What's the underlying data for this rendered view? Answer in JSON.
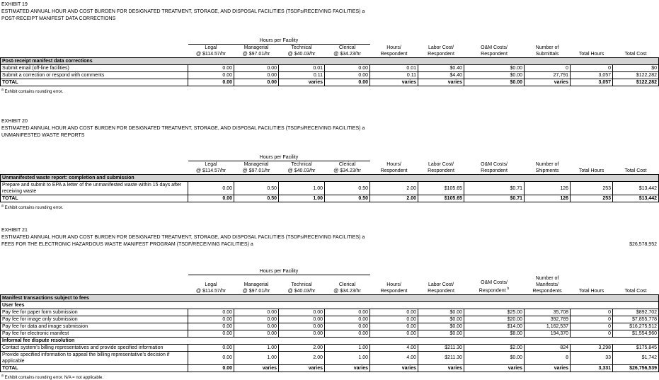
{
  "exhibits": [
    {
      "number": "EXHIBIT 19",
      "title": "ESTIMATED ANNUAL HOUR AND COST BURDEN FOR DESIGNATED TREATMENT, STORAGE, AND DISPOSAL FACILITIES (TSDFs/RECEIVING FACILITIES)",
      "title_note": "a",
      "subtitle": "POST-RECEIPT MANIFEST DATA CORRECTIONS",
      "group_header": "Hours per Facility",
      "columns": [
        {
          "lines": [
            "Legal",
            "@ $114.57/hr"
          ]
        },
        {
          "lines": [
            "Managerial",
            "@ $97.01/hr"
          ]
        },
        {
          "lines": [
            "Technical",
            "@ $40.03/hr"
          ]
        },
        {
          "lines": [
            "Clerical",
            "@ $34.23/hr"
          ]
        },
        {
          "lines": [
            "Hours/",
            "Respondent"
          ]
        },
        {
          "lines": [
            "Labor Cost/",
            "Respondent"
          ]
        },
        {
          "lines": [
            "O&M Costs/",
            "Respondent"
          ]
        },
        {
          "lines": [
            "Number of",
            "Submittals"
          ]
        },
        {
          "lines": [
            "Total Hours"
          ]
        },
        {
          "lines": [
            "Total Cost"
          ]
        }
      ],
      "body": [
        {
          "section": "Post-receipt manifest data corrections"
        },
        {
          "label": "Submit email (off-line facilities)",
          "cells": [
            "0.00",
            "0.00",
            "0.01",
            "0.00",
            "0.01",
            "$0.40",
            "$0.00",
            "0",
            "0",
            "$0"
          ]
        },
        {
          "label": "Submit a correction or respond with comments",
          "cells": [
            "0.00",
            "0.00",
            "0.11",
            "0.00",
            "0.11",
            "$4.40",
            "$0.00",
            "27,791",
            "3,057",
            "$122,282"
          ]
        },
        {
          "total": "TOTAL",
          "cells": [
            "0.00",
            "0.00",
            "varies",
            "0.00",
            "varies",
            "varies",
            "$0.00",
            "varies",
            "3,057",
            "$122,282"
          ]
        }
      ],
      "footnote": {
        "mark": "a",
        "text": "Exhibit contains rounding error."
      }
    },
    {
      "number": "EXHIBIT 20",
      "title": "ESTIMATED ANNUAL HOUR AND COST BURDEN FOR DESIGNATED TREATMENT, STORAGE, AND DISPOSAL FACILITIES (TSDFs/RECEIVING FACILITIES)",
      "title_note": "a",
      "subtitle": "UNMANIFESTED WASTE REPORTS",
      "group_header": "Hours per Facility",
      "columns": [
        {
          "lines": [
            "Legal",
            "@ $114.57/hr"
          ]
        },
        {
          "lines": [
            "Managerial",
            "@ $97.01/hr"
          ]
        },
        {
          "lines": [
            "Technical",
            "@ $40.03/hr"
          ]
        },
        {
          "lines": [
            "Clerical",
            "@ $34.23/hr"
          ]
        },
        {
          "lines": [
            "Hours/",
            "Respondent"
          ]
        },
        {
          "lines": [
            "Labor Cost/",
            "Respondent"
          ]
        },
        {
          "lines": [
            "O&M Costs/",
            "Respondent"
          ]
        },
        {
          "lines": [
            "Number of",
            "Shipments"
          ]
        },
        {
          "lines": [
            "Total Hours"
          ]
        },
        {
          "lines": [
            "Total Cost"
          ]
        }
      ],
      "body": [
        {
          "section": "Unmanifested waste report: completion and submission"
        },
        {
          "label": "Prepare and submit to EPA a letter of the unmanifested waste within 15 days after receiving waste",
          "cells": [
            "0.00",
            "0.50",
            "1.00",
            "0.50",
            "2.00",
            "$105.65",
            "$0.71",
            "126",
            "253",
            "$13,442"
          ]
        },
        {
          "total": "TOTAL",
          "cells": [
            "0.00",
            "0.50",
            "1.00",
            "0.50",
            "2.00",
            "$105.65",
            "$0.71",
            "126",
            "253",
            "$13,442"
          ]
        }
      ],
      "footnote": {
        "mark": "a",
        "text": "Exhibit contains rounding error."
      }
    },
    {
      "number": "EXHIBIT 21",
      "title": "ESTIMATED ANNUAL HOUR AND COST BURDEN FOR DESIGNATED TREATMENT, STORAGE, AND DISPOSAL FACILITIES (TSDFs/RECEIVING FACILITIES)",
      "title_note": "a",
      "subtitle": "FEES FOR THE ELECTRONIC HAZARDOUS WASTE MANIFEST PROGRAM (TSDF/RECEIVING FACILITIES) a",
      "subtitle_value": "$26,578,952",
      "group_header": "Hours per Facility",
      "columns": [
        {
          "lines": [
            "Legal",
            "@ $114.57/hr"
          ]
        },
        {
          "lines": [
            "Managerial",
            "@ $97.01/hr"
          ]
        },
        {
          "lines": [
            "Technical",
            "@ $40.03/hr"
          ]
        },
        {
          "lines": [
            "Clerical",
            "@ $34.23/hr"
          ]
        },
        {
          "lines": [
            "Hours/",
            "Respondent"
          ]
        },
        {
          "lines": [
            "Labor Cost/",
            "Respondent"
          ]
        },
        {
          "lines": [
            "O&M Costs/",
            "Respondent"
          ],
          "note": "b"
        },
        {
          "lines": [
            "Number of",
            "Manifests/",
            "Respondents"
          ]
        },
        {
          "lines": [
            "Total Hours"
          ]
        },
        {
          "lines": [
            "Total Cost"
          ]
        }
      ],
      "body": [
        {
          "section": "Manifest transactions subject to fees"
        },
        {
          "group": "User fees"
        },
        {
          "label": "Pay fee for paper form submission",
          "cells": [
            "0.00",
            "0.00",
            "0.00",
            "0.00",
            "0.00",
            "$0.00",
            "$25.00",
            "35,708",
            "0",
            "$892,702"
          ]
        },
        {
          "label": "Pay fee for image only submission",
          "cells": [
            "0.00",
            "0.00",
            "0.00",
            "0.00",
            "0.00",
            "$0.00",
            "$20.00",
            "392,789",
            "0",
            "$7,855,778"
          ]
        },
        {
          "label": "Pay fee for data and image submission",
          "cells": [
            "0.00",
            "0.00",
            "0.00",
            "0.00",
            "0.00",
            "$0.00",
            "$14.00",
            "1,162,537",
            "0",
            "$16,275,512"
          ]
        },
        {
          "label": "Pay fee for electronic manifest",
          "cells": [
            "0.00",
            "0.00",
            "0.00",
            "0.00",
            "0.00",
            "$0.00",
            "$8.00",
            "194,370",
            "0",
            "$1,554,960"
          ]
        },
        {
          "group": "Informal fee dispute resolution"
        },
        {
          "label": "Contact system's billing representatives and provide specified information",
          "cells": [
            "0.00",
            "1.00",
            "2.00",
            "1.00",
            "4.00",
            "$211.30",
            "$2.00",
            "824",
            "3,298",
            "$175,845"
          ]
        },
        {
          "label": "Provide specified information to appeal the billing representative's decision if applicable",
          "cells": [
            "0.00",
            "1.00",
            "2.00",
            "1.00",
            "4.00",
            "$211.30",
            "$0.00",
            "8",
            "33",
            "$1,742"
          ]
        },
        {
          "total": "TOTAL",
          "cells": [
            "0.00",
            "varies",
            "varies",
            "varies",
            "varies",
            "varies",
            "varies",
            "varies",
            "3,331",
            "$26,756,539"
          ]
        }
      ],
      "footnote": {
        "mark": "a",
        "text": "Exhibit contains rounding error. N/A = not applicable."
      }
    }
  ]
}
